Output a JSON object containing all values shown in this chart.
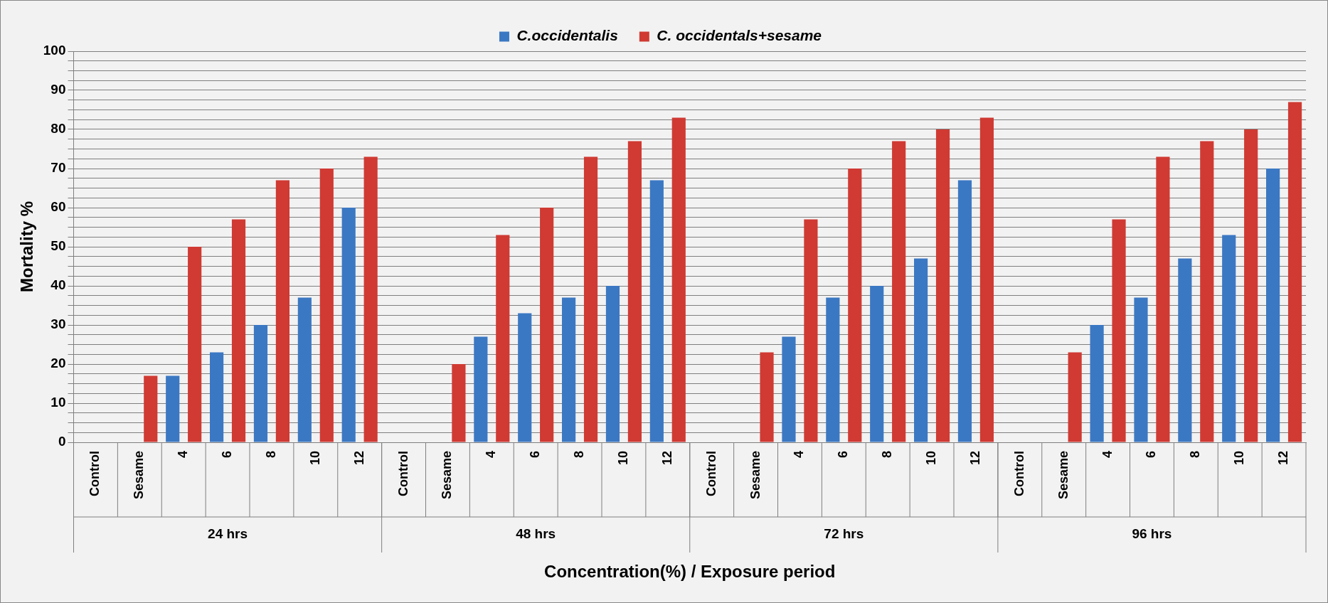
{
  "chart_data": {
    "type": "bar",
    "xlabel": "Concentration(%) / Exposure period",
    "ylabel": "Mortality %",
    "categories": [
      "Control",
      "Sesame",
      "4",
      "6",
      "8",
      "10",
      "12",
      "Control",
      "Sesame",
      "4",
      "6",
      "8",
      "10",
      "12",
      "Control",
      "Sesame",
      "4",
      "6",
      "8",
      "10",
      "12",
      "Control",
      "Sesame",
      "4",
      "6",
      "8",
      "10",
      "12"
    ],
    "series": [
      {
        "name": "C.occidentalis",
        "color": "#3b78c3",
        "values": [
          0,
          0,
          17,
          23,
          30,
          37,
          60,
          0,
          0,
          27,
          33,
          37,
          40,
          67,
          0,
          0,
          27,
          37,
          40,
          47,
          67,
          0,
          0,
          30,
          37,
          47,
          53,
          70
        ]
      },
      {
        "name": "C. occidentals+sesame",
        "color": "#d03a33",
        "values": [
          0,
          17,
          50,
          57,
          67,
          70,
          73,
          0,
          20,
          53,
          60,
          73,
          77,
          83,
          0,
          23,
          57,
          70,
          77,
          80,
          83,
          0,
          23,
          57,
          73,
          77,
          80,
          87
        ]
      }
    ],
    "annotations": [
      "24 hrs",
      "48 hrs",
      "72 hrs",
      "96 hrs"
    ],
    "ylim": [
      0,
      100
    ],
    "yticks": [
      0,
      {
        "value": 2.5,
        "label": null
      },
      {
        "value": 5,
        "label": null
      },
      {
        "value": 7.5,
        "label": null
      },
      10,
      {
        "value": 12.5,
        "label": null
      },
      {
        "value": 15,
        "label": null
      },
      {
        "value": 17.5,
        "label": null
      },
      20,
      {
        "value": 22.5,
        "label": null
      },
      {
        "value": 25,
        "label": null
      },
      {
        "value": 27.5,
        "label": null
      },
      30,
      {
        "value": 32.5,
        "label": null
      },
      {
        "value": 35,
        "label": null
      },
      {
        "value": 37.5,
        "label": null
      },
      40,
      {
        "value": 42.5,
        "label": null
      },
      {
        "value": 45,
        "label": null
      },
      {
        "value": 47.5,
        "label": null
      },
      50,
      {
        "value": 52.5,
        "label": null
      },
      {
        "value": 55,
        "label": null
      },
      {
        "value": 57.5,
        "label": null
      },
      60,
      {
        "value": 62.5,
        "label": null
      },
      {
        "value": 65,
        "label": null
      },
      {
        "value": 67.5,
        "label": null
      },
      70,
      {
        "value": 72.5,
        "label": null
      },
      {
        "value": 75,
        "label": null
      },
      {
        "value": 77.5,
        "label": null
      },
      80,
      {
        "value": 82.5,
        "label": null
      },
      {
        "value": 85,
        "label": null
      },
      {
        "value": 87.5,
        "label": null
      },
      90,
      {
        "value": 92.5,
        "label": null
      },
      {
        "value": 95,
        "label": null
      },
      {
        "value": 97.5,
        "label": null
      },
      100
    ],
    "grid": "y",
    "legend": "top"
  }
}
